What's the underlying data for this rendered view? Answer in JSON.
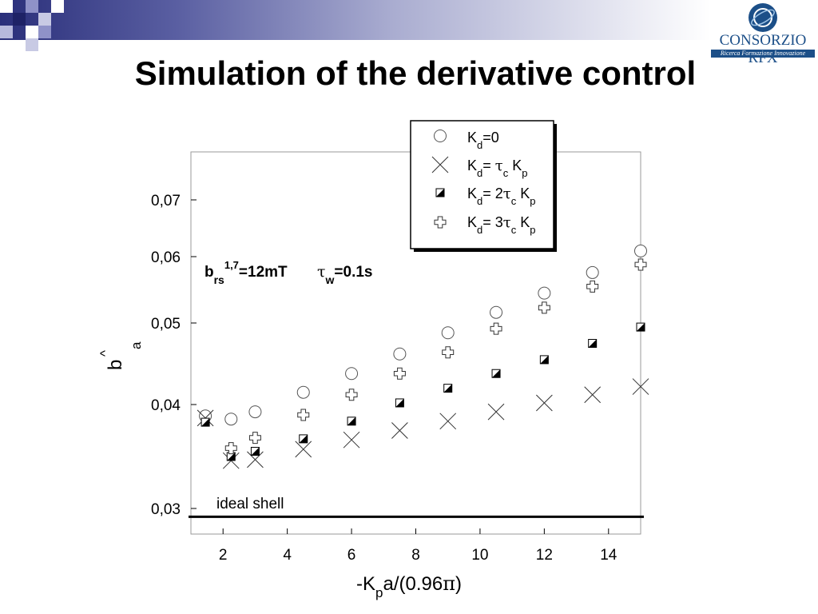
{
  "slide": {
    "title": "Simulation of the derivative control",
    "logo": {
      "name": "CONSORZIO RFX",
      "tagline": "Ricerca Formazione Innovazione"
    }
  },
  "chart_data": {
    "type": "scatter",
    "xlim": [
      1,
      15
    ],
    "ylim": [
      0.028,
      0.073
    ],
    "x_ticks": [
      2,
      4,
      6,
      8,
      10,
      12,
      14
    ],
    "y_ticks": [
      0.03,
      0.04,
      0.05,
      0.06,
      0.07
    ],
    "x_tick_labels": [
      "2",
      "4",
      "6",
      "8",
      "10",
      "12",
      "14"
    ],
    "y_tick_labels": [
      "0,03",
      "0,04",
      "0,05",
      "0,06",
      "0,07"
    ],
    "xlabel": {
      "pre": "-K",
      "sub": "p",
      "post": "a/(0.96",
      "sym": "π",
      "close": ")"
    },
    "ylabel": {
      "base": "b",
      "sub": "a",
      "hat": "^"
    },
    "legend_position": "top-right",
    "annotation": {
      "b": "b",
      "b_sub": "rs",
      "b_sup": "1,7",
      "b_val": "=12mT",
      "tau": "τ",
      "tau_sub": "w",
      "tau_val": "=0.1s"
    },
    "reference_line": {
      "label": "ideal shell",
      "y": 0.0292
    },
    "series": [
      {
        "marker": "circle",
        "legend": {
          "k": "K",
          "d": "d",
          "rest": "=0"
        },
        "points": [
          [
            1.45,
            0.0389
          ],
          [
            2.25,
            0.0386
          ],
          [
            3.0,
            0.0393
          ],
          [
            4.5,
            0.0415
          ],
          [
            6.0,
            0.0438
          ],
          [
            7.5,
            0.0462
          ],
          [
            9.0,
            0.0488
          ],
          [
            10.5,
            0.0516
          ],
          [
            12.0,
            0.0545
          ],
          [
            13.5,
            0.0576
          ],
          [
            15.0,
            0.061
          ]
        ]
      },
      {
        "marker": "x",
        "legend": {
          "k": "K",
          "d": "d",
          "eq": "= ",
          "tau": "τ",
          "c": "c",
          "kp": " K",
          "p": "p"
        },
        "points": [
          [
            1.45,
            0.0387
          ],
          [
            2.25,
            0.0346
          ],
          [
            3.0,
            0.0347
          ],
          [
            4.5,
            0.0357
          ],
          [
            6.0,
            0.0366
          ],
          [
            7.5,
            0.0375
          ],
          [
            9.0,
            0.0384
          ],
          [
            10.5,
            0.0393
          ],
          [
            12.0,
            0.0402
          ],
          [
            13.5,
            0.0412
          ],
          [
            15.0,
            0.0422
          ]
        ]
      },
      {
        "marker": "half-filled-square",
        "legend": {
          "k": "K",
          "d": "d",
          "eq": "= 2",
          "tau": "τ",
          "c": "c",
          "kp": " K",
          "p": "p"
        },
        "points": [
          [
            1.45,
            0.0383
          ],
          [
            2.25,
            0.035
          ],
          [
            3.0,
            0.0355
          ],
          [
            4.5,
            0.0367
          ],
          [
            6.0,
            0.0384
          ],
          [
            7.5,
            0.0402
          ],
          [
            9.0,
            0.042
          ],
          [
            10.5,
            0.0438
          ],
          [
            12.0,
            0.0455
          ],
          [
            13.5,
            0.0475
          ],
          [
            15.0,
            0.0495
          ]
        ]
      },
      {
        "marker": "plus-outline",
        "legend": {
          "k": "K",
          "d": "d",
          "eq": "= 3",
          "tau": "τ",
          "c": "c",
          "kp": " K",
          "p": "p"
        },
        "points": [
          [
            2.25,
            0.0358
          ],
          [
            3.0,
            0.0368
          ],
          [
            4.5,
            0.039
          ],
          [
            6.0,
            0.0412
          ],
          [
            7.5,
            0.0438
          ],
          [
            9.0,
            0.0464
          ],
          [
            10.5,
            0.0493
          ],
          [
            12.0,
            0.0523
          ],
          [
            13.5,
            0.0555
          ],
          [
            15.0,
            0.0588
          ]
        ]
      }
    ]
  }
}
